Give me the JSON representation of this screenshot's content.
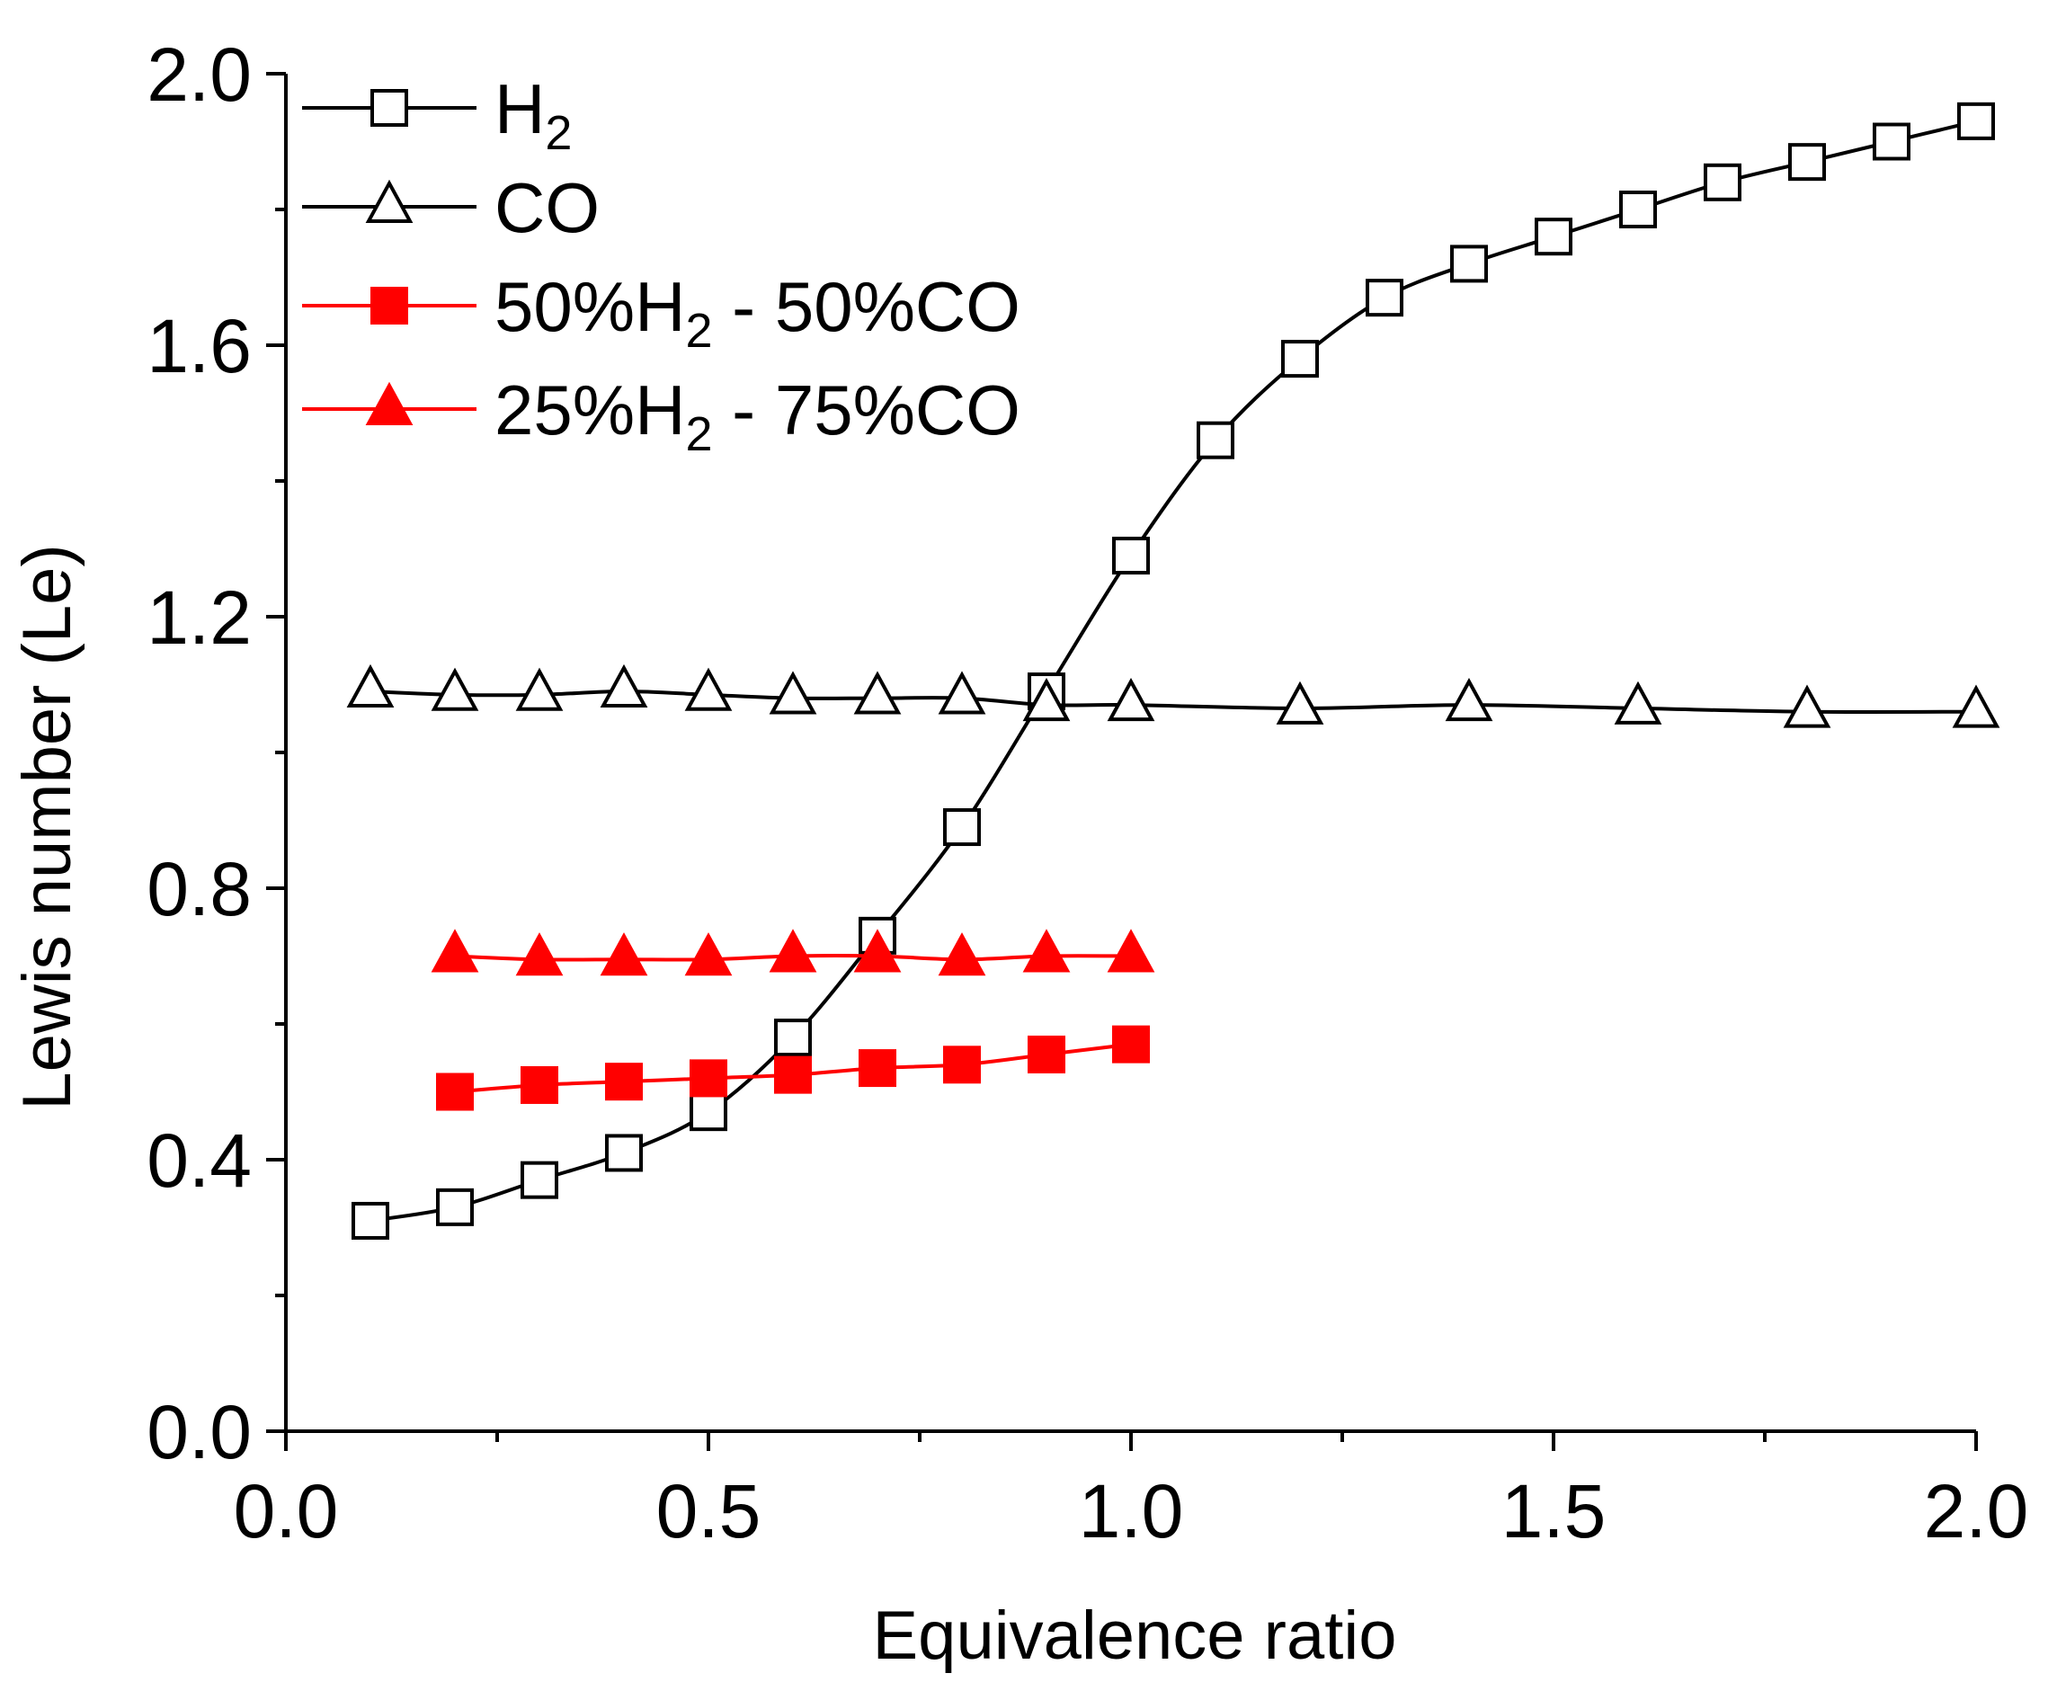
{
  "chart_data": {
    "type": "line",
    "title": "",
    "xlabel": "Equivalence ratio",
    "ylabel": "Lewis number (Le)",
    "xlim": [
      0.0,
      2.0
    ],
    "ylim": [
      0.0,
      2.0
    ],
    "x_ticks": [
      "0.0",
      "0.5",
      "1.0",
      "1.5",
      "2.0"
    ],
    "y_ticks": [
      "0.0",
      "0.4",
      "0.8",
      "1.2",
      "1.6",
      "2.0"
    ],
    "grid": false,
    "legend_position": "top-left",
    "series": [
      {
        "name": "H",
        "sub": "2",
        "suffix": "",
        "color": "#000000",
        "marker": "square",
        "filled": false,
        "x": [
          0.1,
          0.2,
          0.3,
          0.4,
          0.5,
          0.6,
          0.7,
          0.8,
          0.9,
          1.0,
          1.1,
          1.2,
          1.3,
          1.4,
          1.5,
          1.6,
          1.7,
          1.8,
          1.9,
          2.0
        ],
        "y": [
          0.31,
          0.33,
          0.37,
          0.41,
          0.47,
          0.58,
          0.73,
          0.89,
          1.09,
          1.29,
          1.46,
          1.58,
          1.67,
          1.72,
          1.76,
          1.8,
          1.84,
          1.87,
          1.9,
          1.93
        ]
      },
      {
        "name": "CO",
        "sub": "",
        "suffix": "",
        "color": "#000000",
        "marker": "triangle",
        "filled": false,
        "x": [
          0.1,
          0.2,
          0.3,
          0.4,
          0.5,
          0.6,
          0.7,
          0.8,
          0.9,
          1.0,
          1.2,
          1.4,
          1.6,
          1.8,
          2.0
        ],
        "y": [
          1.09,
          1.085,
          1.085,
          1.09,
          1.085,
          1.08,
          1.08,
          1.08,
          1.07,
          1.07,
          1.065,
          1.07,
          1.065,
          1.06,
          1.06
        ]
      },
      {
        "name": "50%H",
        "sub": "2",
        "suffix": " - 50%CO",
        "color": "#ff0000",
        "marker": "square",
        "filled": true,
        "x": [
          0.2,
          0.3,
          0.4,
          0.5,
          0.6,
          0.7,
          0.8,
          0.9,
          1.0
        ],
        "y": [
          0.5,
          0.51,
          0.515,
          0.52,
          0.525,
          0.535,
          0.54,
          0.555,
          0.57
        ]
      },
      {
        "name": "25%H",
        "sub": "2",
        "suffix": " - 75%CO",
        "color": "#ff0000",
        "marker": "triangle",
        "filled": true,
        "x": [
          0.2,
          0.3,
          0.4,
          0.5,
          0.6,
          0.7,
          0.8,
          0.9,
          1.0
        ],
        "y": [
          0.7,
          0.695,
          0.695,
          0.695,
          0.7,
          0.7,
          0.695,
          0.7,
          0.7
        ]
      }
    ]
  }
}
